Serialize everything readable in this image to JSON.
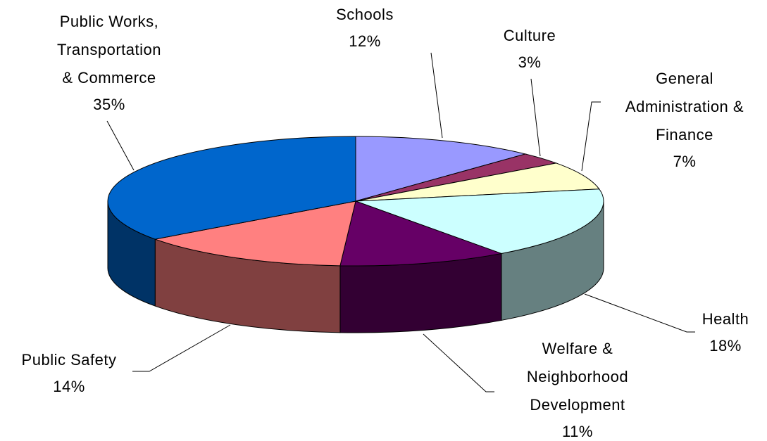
{
  "chart_data": {
    "type": "pie3d",
    "categories": [
      "Schools",
      "Culture",
      "General\nAdministration &\nFinance",
      "Health",
      "Welfare &\nNeighborhood\nDevelopment",
      "Public Safety",
      "Public Works,\nTransportation\n& Commerce"
    ],
    "values": [
      12,
      3,
      7,
      18,
      11,
      14,
      35
    ],
    "value_labels": [
      "12%",
      "3%",
      "7%",
      "18%",
      "11%",
      "14%",
      "35%"
    ],
    "colors": [
      "#9999ff",
      "#993366",
      "#ffffcc",
      "#ccffff",
      "#660066",
      "#ff8080",
      "#0066cc"
    ]
  }
}
